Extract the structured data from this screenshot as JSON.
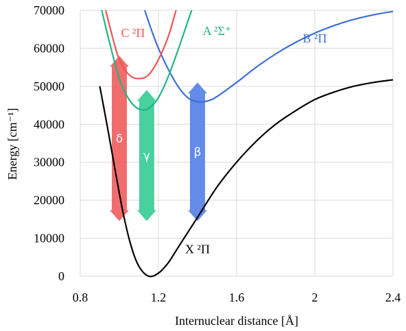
{
  "chart_data": {
    "type": "line",
    "xlabel": "Internuclear distance [Å]",
    "ylabel": "Energy [cm⁻¹]",
    "xlim": [
      0.8,
      2.4
    ],
    "ylim": [
      0,
      70000
    ],
    "x_ticks": [
      0.8,
      1.2,
      1.6,
      2.0,
      2.4
    ],
    "x_tick_labels": [
      "0.8",
      "1.2",
      "1.6",
      "2",
      "2.4"
    ],
    "y_ticks": [
      0,
      10000,
      20000,
      30000,
      40000,
      50000,
      60000,
      70000
    ],
    "y_tick_labels": [
      "0",
      "10000",
      "20000",
      "30000",
      "40000",
      "50000",
      "60000",
      "70000"
    ],
    "grid": true,
    "series": [
      {
        "name": "X ²Π",
        "color": "#000000",
        "label_at": [
          1.4,
          6000
        ],
        "points": [
          [
            0.9,
            50000
          ],
          [
            0.94,
            39000
          ],
          [
            0.98,
            27500
          ],
          [
            1.02,
            16500
          ],
          [
            1.06,
            8000
          ],
          [
            1.1,
            2600
          ],
          [
            1.15,
            0
          ],
          [
            1.2,
            800
          ],
          [
            1.25,
            3500
          ],
          [
            1.3,
            7500
          ],
          [
            1.4,
            15500
          ],
          [
            1.5,
            23500
          ],
          [
            1.6,
            30000
          ],
          [
            1.7,
            35500
          ],
          [
            1.8,
            40000
          ],
          [
            1.9,
            43500
          ],
          [
            2.0,
            46500
          ],
          [
            2.1,
            48500
          ],
          [
            2.2,
            50000
          ],
          [
            2.3,
            51000
          ],
          [
            2.4,
            51700
          ]
        ]
      },
      {
        "name": "B ²Π",
        "color": "#3b6fd8",
        "label_at": [
          2.0,
          61500
        ],
        "points": [
          [
            1.13,
            70000
          ],
          [
            1.17,
            64000
          ],
          [
            1.2,
            60000
          ],
          [
            1.25,
            54500
          ],
          [
            1.3,
            50000
          ],
          [
            1.35,
            47000
          ],
          [
            1.4,
            45900
          ],
          [
            1.45,
            46100
          ],
          [
            1.5,
            47300
          ],
          [
            1.6,
            51000
          ],
          [
            1.7,
            55000
          ],
          [
            1.8,
            58500
          ],
          [
            1.9,
            61500
          ],
          [
            2.0,
            64000
          ],
          [
            2.1,
            66000
          ],
          [
            2.2,
            67600
          ],
          [
            2.3,
            68800
          ],
          [
            2.4,
            69700
          ]
        ]
      },
      {
        "name": "A ²Σ⁺",
        "color": "#20b585",
        "label_at": [
          1.5,
          63500
        ],
        "points": [
          [
            0.91,
            70000
          ],
          [
            0.95,
            61500
          ],
          [
            1.0,
            52000
          ],
          [
            1.05,
            46500
          ],
          [
            1.1,
            44000
          ],
          [
            1.15,
            44200
          ],
          [
            1.2,
            47000
          ],
          [
            1.25,
            52500
          ],
          [
            1.3,
            59500
          ],
          [
            1.35,
            67000
          ],
          [
            1.37,
            70000
          ]
        ]
      },
      {
        "name": "C ²Π",
        "color": "#ee5454",
        "label_at": [
          1.07,
          63000
        ],
        "points": [
          [
            0.93,
            70000
          ],
          [
            0.97,
            62000
          ],
          [
            1.0,
            57000
          ],
          [
            1.05,
            53000
          ],
          [
            1.1,
            52000
          ],
          [
            1.15,
            53000
          ],
          [
            1.2,
            57000
          ],
          [
            1.25,
            63000
          ],
          [
            1.29,
            70000
          ]
        ]
      }
    ],
    "transitions": [
      {
        "label": "δ",
        "x": 1.0,
        "y_low": 14500,
        "y_high": 58000,
        "color": "#f06464"
      },
      {
        "label": "γ",
        "x": 1.14,
        "y_low": 14500,
        "y_high": 49000,
        "color": "#3ecf9a"
      },
      {
        "label": "β",
        "x": 1.4,
        "y_low": 14500,
        "y_high": 51000,
        "color": "#5b85e6"
      }
    ]
  }
}
